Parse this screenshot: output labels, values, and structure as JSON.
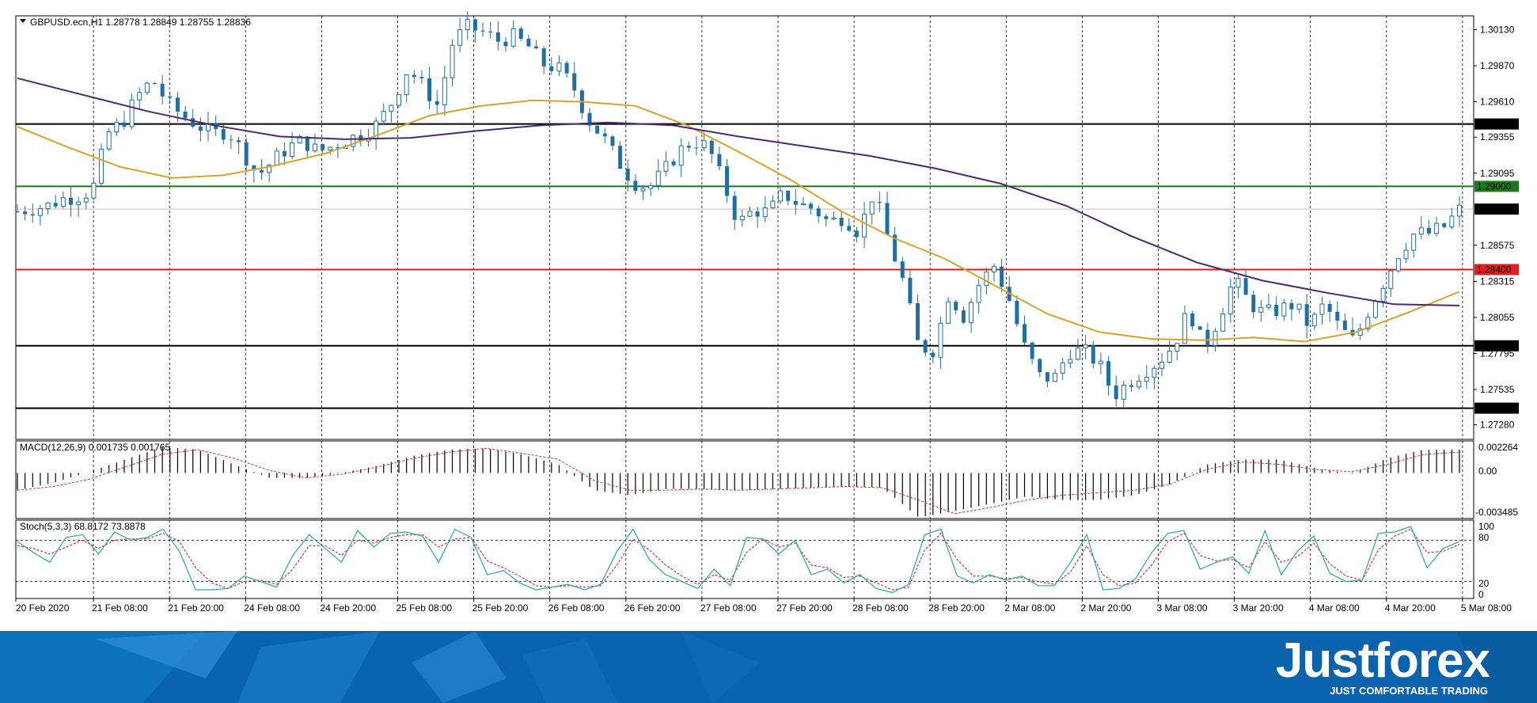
{
  "header": {
    "symbol_line": "GBPUSD.ecn,H1  1.28778 1.28849 1.28755 1.28836"
  },
  "macd": {
    "title": "MACD(12,26,9) 0.001735 0.001765",
    "axis_labels": [
      "0.002264",
      "0.00",
      "-0.003485"
    ]
  },
  "stoch": {
    "title": "Stoch(5,3,3) 68.8172 73.8878",
    "axis_labels": [
      "100",
      "80",
      "20",
      "0"
    ]
  },
  "brand": {
    "name": "Justforex",
    "tagline": "JUST COMFORTABLE TRADING"
  },
  "colors": {
    "bull": "#1f6fa5",
    "bear": "#1f6fa5",
    "ma_fast": "#d4a52a",
    "ma_slow": "#4b2a6e",
    "support_resistance": "#000000",
    "target_green": "#1b7a1b",
    "target_red": "#e02020",
    "stoch_main": "#2aa6a6",
    "stoch_signal": "#e03030",
    "banner": "#0a66b0"
  },
  "chart_data": [
    {
      "type": "candlestick",
      "title": "GBPUSD.ecn,H1",
      "ylim": [
        1.27175,
        1.3023
      ],
      "y_ticks": [
        "1.30130",
        "1.29870",
        "1.29610",
        "1.29355",
        "1.29095",
        "1.28575",
        "1.28315",
        "1.28055",
        "1.27795",
        "1.27535",
        "1.27280"
      ],
      "current_price": "1.28836",
      "levels": [
        {
          "value": "1.29450",
          "role": "resistance"
        },
        {
          "value": "1.29000",
          "role": "target-green"
        },
        {
          "value": "1.28400",
          "role": "target-red"
        },
        {
          "value": "1.27850",
          "role": "support"
        },
        {
          "value": "1.27400",
          "role": "support"
        }
      ],
      "x_labels": [
        "20 Feb 2020",
        "21 Feb 08:00",
        "21 Feb 20:00",
        "24 Feb 08:00",
        "24 Feb 20:00",
        "25 Feb 08:00",
        "25 Feb 20:00",
        "26 Feb 08:00",
        "26 Feb 20:00",
        "27 Feb 08:00",
        "27 Feb 20:00",
        "28 Feb 08:00",
        "28 Feb 20:00",
        "2 Mar 08:00",
        "2 Mar 20:00",
        "3 Mar 08:00",
        "3 Mar 20:00",
        "4 Mar 08:00",
        "4 Mar 20:00",
        "5 Mar 08:00"
      ],
      "close_path": [
        1.2882,
        1.2884,
        1.2886,
        1.2891,
        1.2893,
        1.2897,
        1.2938,
        1.2946,
        1.2965,
        1.2977,
        1.296,
        1.2951,
        1.2944,
        1.2938,
        1.294,
        1.2925,
        1.2908,
        1.2918,
        1.2928,
        1.2933,
        1.2925,
        1.2929,
        1.2934,
        1.2938,
        1.2945,
        1.2962,
        1.2985,
        1.2972,
        1.2958,
        1.3005,
        1.3015,
        1.3011,
        1.3005,
        1.3008,
        1.3001,
        1.2988,
        1.2985,
        1.2972,
        1.2948,
        1.2935,
        1.2918,
        1.2903,
        1.2899,
        1.291,
        1.2925,
        1.2933,
        1.2928,
        1.2902,
        1.2873,
        1.2883,
        1.2881,
        1.2895,
        1.2887,
        1.2884,
        1.2874,
        1.2878,
        1.2867,
        1.2896,
        1.2861,
        1.283,
        1.2784,
        1.2782,
        1.2823,
        1.2806,
        1.2829,
        1.2843,
        1.2819,
        1.2785,
        1.2763,
        1.2761,
        1.2781,
        1.2781,
        1.2772,
        1.2749,
        1.2759,
        1.2767,
        1.2774,
        1.2786,
        1.2811,
        1.2783,
        1.2806,
        1.2833,
        1.2816,
        1.2808,
        1.2811,
        1.2815,
        1.2799,
        1.2815,
        1.2798,
        1.2788,
        1.2812,
        1.2832,
        1.2853,
        1.2866,
        1.2866,
        1.2871,
        1.2883
      ],
      "series": [
        {
          "name": "MA fast",
          "values": [
            1.2943,
            1.2928,
            1.2914,
            1.2906,
            1.2908,
            1.2915,
            1.2924,
            1.2937,
            1.2951,
            1.2958,
            1.2962,
            1.2961,
            1.2958,
            1.2944,
            1.2925,
            1.2905,
            1.2882,
            1.2863,
            1.2848,
            1.2828,
            1.2808,
            1.2795,
            1.279,
            1.2789,
            1.2791,
            1.2788,
            1.2795,
            1.2809,
            1.2824
          ]
        },
        {
          "name": "MA slow",
          "values": [
            1.2978,
            1.2966,
            1.2954,
            1.2944,
            1.2936,
            1.2934,
            1.2935,
            1.294,
            1.2944,
            1.2946,
            1.2944,
            1.2936,
            1.2929,
            1.2922,
            1.2913,
            1.2902,
            1.2886,
            1.2864,
            1.2845,
            1.2832,
            1.2823,
            1.2815,
            1.2814
          ]
        }
      ]
    },
    {
      "type": "bar",
      "title": "MACD(12,26,9)",
      "ylim": [
        -0.0037,
        0.0026
      ],
      "x_range": "20 Feb 2020 – 5 Mar 08:00",
      "histogram": [
        -0.0014,
        -0.0008,
        0.0001,
        0.0011,
        0.0021,
        0.0019,
        0.0007,
        -0.0004,
        -0.0004,
        0.0,
        0.0006,
        0.0014,
        0.0019,
        0.002,
        0.0015,
        0.0007,
        -0.0014,
        -0.0018,
        -0.0013,
        -0.0013,
        -0.0014,
        -0.0013,
        -0.0012,
        -0.0011,
        -0.0012,
        -0.0036,
        -0.0031,
        -0.0025,
        -0.0019,
        -0.0022,
        -0.0022,
        -0.0018,
        -0.0009,
        0.0007,
        0.0011,
        0.0011,
        0.0004,
        -0.0001,
        0.0012,
        0.0019,
        0.0019
      ],
      "signal": [
        -0.0014,
        -0.0011,
        -0.0005,
        0.0005,
        0.0015,
        0.0019,
        0.0012,
        0.0002,
        -0.0004,
        -0.0001,
        0.0005,
        0.0012,
        0.0017,
        0.002,
        0.0016,
        0.0011,
        -0.0006,
        -0.0014,
        -0.0014,
        -0.0013,
        -0.0014,
        -0.0013,
        -0.0012,
        -0.0011,
        -0.0012,
        -0.0022,
        -0.0033,
        -0.0028,
        -0.0022,
        -0.0018,
        -0.0016,
        -0.0014,
        -0.0009,
        0.0003,
        0.0009,
        0.0007,
        0.0003,
        0.0001,
        0.0007,
        0.0015,
        0.0017
      ]
    },
    {
      "type": "line",
      "title": "Stoch(5,3,3)",
      "ylim": [
        0,
        100
      ],
      "levels": [
        80,
        20
      ],
      "main": [
        78,
        62,
        48,
        84,
        88,
        60,
        92,
        80,
        84,
        96,
        64,
        8,
        8,
        10,
        28,
        20,
        12,
        58,
        88,
        68,
        48,
        94,
        70,
        90,
        92,
        86,
        48,
        96,
        84,
        30,
        36,
        18,
        8,
        12,
        16,
        8,
        16,
        64,
        96,
        52,
        30,
        20,
        10,
        38,
        14,
        84,
        82,
        60,
        80,
        30,
        38,
        18,
        30,
        10,
        4,
        16,
        88,
        96,
        28,
        18,
        30,
        22,
        28,
        14,
        14,
        48,
        88,
        8,
        10,
        24,
        62,
        90,
        94,
        38,
        48,
        56,
        32,
        94,
        30,
        64,
        86,
        32,
        20,
        22,
        90,
        92,
        100,
        40,
        68,
        78
      ],
      "signal": [
        72,
        68,
        60,
        70,
        80,
        68,
        80,
        82,
        82,
        90,
        78,
        40,
        18,
        10,
        20,
        22,
        16,
        38,
        72,
        72,
        58,
        80,
        76,
        84,
        88,
        88,
        70,
        82,
        84,
        50,
        40,
        28,
        14,
        12,
        14,
        12,
        14,
        44,
        82,
        66,
        44,
        28,
        16,
        30,
        22,
        62,
        82,
        70,
        76,
        44,
        40,
        26,
        28,
        18,
        8,
        12,
        66,
        90,
        52,
        28,
        28,
        24,
        26,
        20,
        16,
        34,
        72,
        30,
        14,
        18,
        44,
        78,
        90,
        58,
        50,
        52,
        40,
        78,
        48,
        56,
        76,
        46,
        28,
        22,
        66,
        86,
        96,
        62,
        64,
        74
      ]
    }
  ]
}
